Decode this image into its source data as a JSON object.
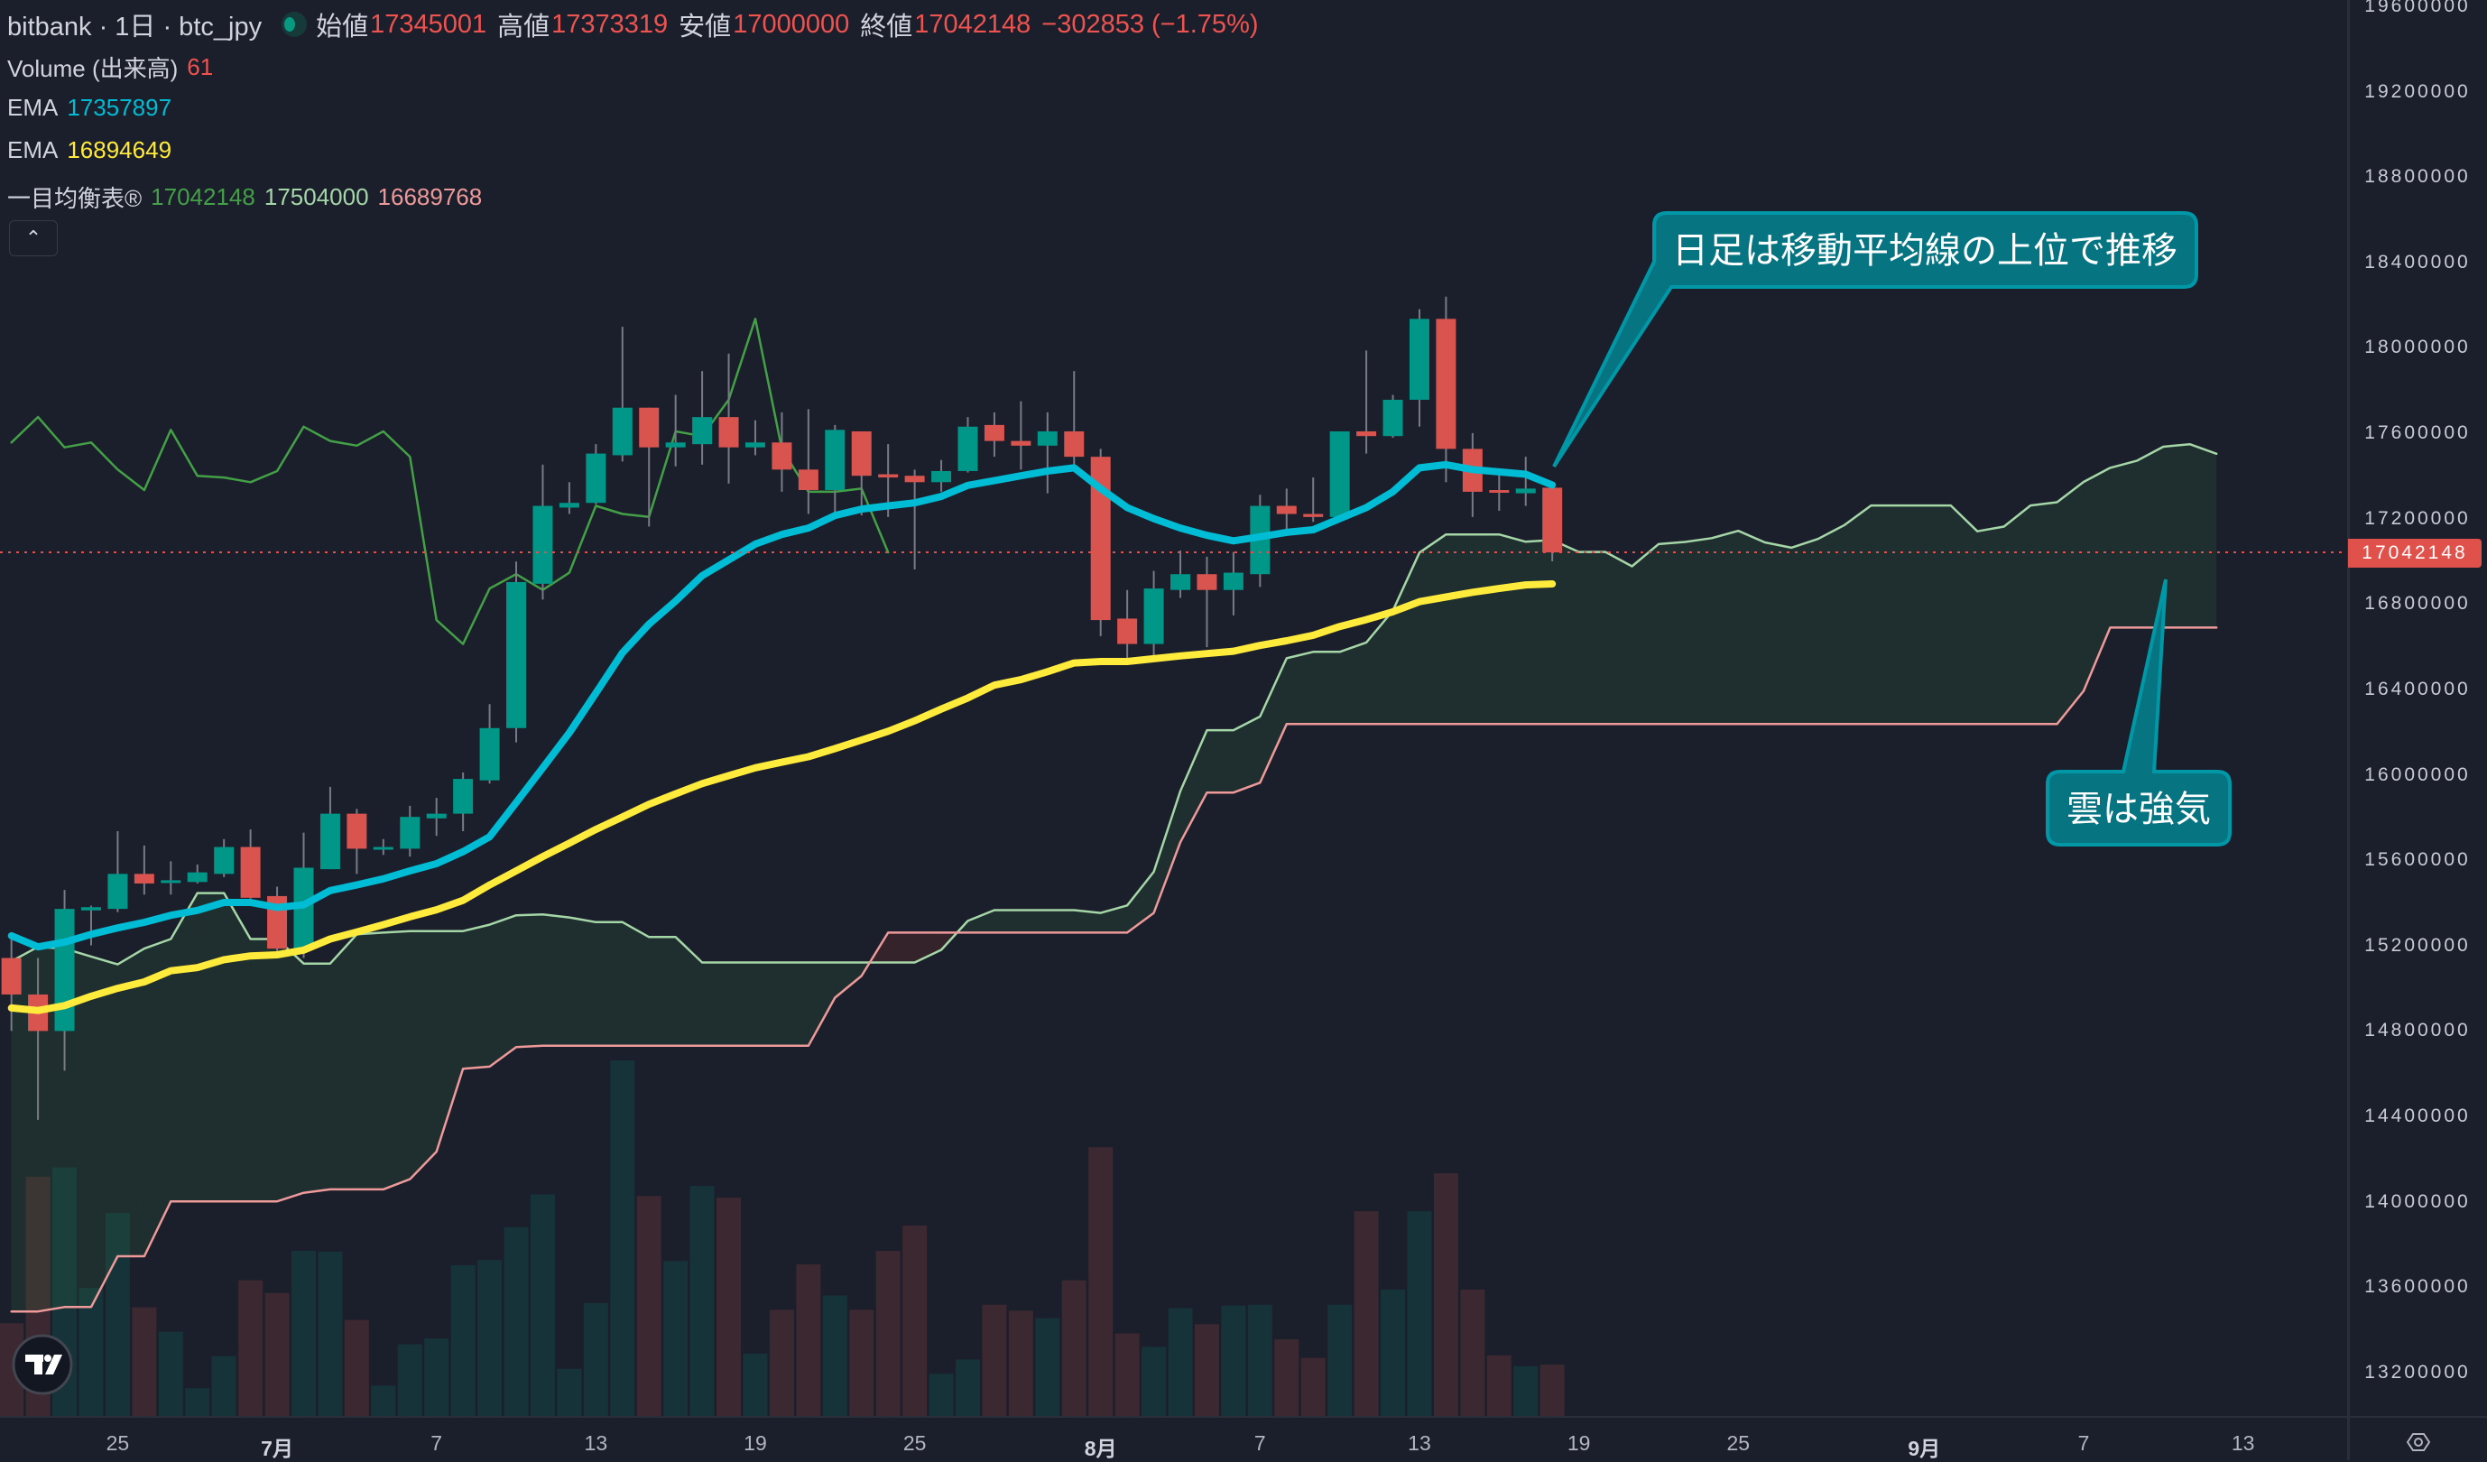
{
  "header": {
    "title": "bitbank · 1日 · btc_jpy",
    "ohlc": [
      {
        "label": "始値",
        "value": "17345001"
      },
      {
        "label": "高値",
        "value": "17373319"
      },
      {
        "label": "安値",
        "value": "17000000"
      },
      {
        "label": "終値",
        "value": "17042148"
      }
    ],
    "change": "−302853 (−1.75%)"
  },
  "indicators": {
    "volume": {
      "label": "Volume (出来高)",
      "value": "61"
    },
    "ema_fast": {
      "label": "EMA",
      "value": "17357897",
      "color": "#00bcd4"
    },
    "ema_slow": {
      "label": "EMA",
      "value": "16894649",
      "color": "#ffeb3b"
    },
    "ichimoku": {
      "label": "一目均衡表®",
      "values": [
        "17042148",
        "17504000",
        "16689768"
      ],
      "colors": [
        "#43a047",
        "#a5d6a7",
        "#ef9a9a"
      ]
    },
    "collapse_icon": "chevron-up-icon"
  },
  "annotations": {
    "callout_ma": "日足は移動平均線の上位で推移",
    "callout_cloud": "雲は強気"
  },
  "price_axis": {
    "labels": [
      "19600000",
      "19200000",
      "18800000",
      "18400000",
      "18000000",
      "17600000",
      "17200000",
      "16800000",
      "16400000",
      "16000000",
      "15600000",
      "15200000",
      "14800000",
      "14400000",
      "14000000",
      "13600000",
      "13200000"
    ],
    "current_price": "17042148"
  },
  "time_axis": [
    {
      "label": "25",
      "day_offset": 4,
      "month": false
    },
    {
      "label": "7月",
      "day_offset": 10,
      "month": true
    },
    {
      "label": "7",
      "day_offset": 16,
      "month": false
    },
    {
      "label": "13",
      "day_offset": 22,
      "month": false
    },
    {
      "label": "19",
      "day_offset": 28,
      "month": false
    },
    {
      "label": "25",
      "day_offset": 34,
      "month": false
    },
    {
      "label": "8月",
      "day_offset": 41,
      "month": true
    },
    {
      "label": "7",
      "day_offset": 47,
      "month": false
    },
    {
      "label": "13",
      "day_offset": 53,
      "month": false
    },
    {
      "label": "19",
      "day_offset": 59,
      "month": false
    },
    {
      "label": "25",
      "day_offset": 65,
      "month": false
    },
    {
      "label": "9月",
      "day_offset": 72,
      "month": true
    },
    {
      "label": "7",
      "day_offset": 78,
      "month": false
    },
    {
      "label": "13",
      "day_offset": 84,
      "month": false
    }
  ],
  "colors": {
    "up": "#009688",
    "down": "#d9534f",
    "wick": "#787b86",
    "vol_up": "#16333a",
    "vol_down": "#3b2831",
    "background": "#1b1f2b"
  },
  "chart_data": {
    "type": "candlestick",
    "symbol": "btc_jpy",
    "interval": "1日",
    "ylim": [
      13000000,
      19700000
    ],
    "candle_fields": [
      "date",
      "open",
      "high",
      "low",
      "close"
    ],
    "candles": [
      [
        "6/21",
        15142000,
        15246000,
        14800000,
        14971000
      ],
      [
        "6/22",
        14971000,
        15142000,
        14384000,
        14800000
      ],
      [
        "6/23",
        14800000,
        15461000,
        14614000,
        15372000
      ],
      [
        "6/24",
        15365000,
        15387000,
        15201000,
        15380000
      ],
      [
        "6/25",
        15372000,
        15736000,
        15357000,
        15536000
      ],
      [
        "6/26",
        15536000,
        15669000,
        15439000,
        15491000
      ],
      [
        "6/27",
        15500000,
        15595000,
        15439000,
        15506000
      ],
      [
        "6/28",
        15498000,
        15580000,
        15491000,
        15543000
      ],
      [
        "6/29",
        15536000,
        15699000,
        15521000,
        15662000
      ],
      [
        "6/30",
        15662000,
        15744000,
        15420000,
        15424000
      ],
      [
        "7/1",
        15432000,
        15476000,
        15157000,
        15186000
      ],
      [
        "7/2",
        15186000,
        15729000,
        15142000,
        15565000
      ],
      [
        "7/3",
        15558000,
        15944000,
        15558000,
        15818000
      ],
      [
        "7/4",
        15818000,
        15840000,
        15536000,
        15654000
      ],
      [
        "7/5",
        15654000,
        15699000,
        15625000,
        15662000
      ],
      [
        "7/6",
        15654000,
        15855000,
        15617000,
        15803000
      ],
      [
        "7/7",
        15796000,
        15892000,
        15714000,
        15818000
      ],
      [
        "7/8",
        15818000,
        16011000,
        15736000,
        15981000
      ],
      [
        "7/9",
        15974000,
        16331000,
        15959000,
        16219000
      ],
      [
        "7/10",
        16219000,
        16999000,
        16152000,
        16903000
      ],
      [
        "7/11",
        16895000,
        17453000,
        16821000,
        17260000
      ],
      [
        "7/12",
        17252000,
        17371000,
        17222000,
        17274000
      ],
      [
        "7/13",
        17274000,
        17549000,
        17267000,
        17505000
      ],
      [
        "7/14",
        17497000,
        18099000,
        17468000,
        17720000
      ],
      [
        "7/15",
        17720000,
        17720000,
        17163000,
        17534000
      ],
      [
        "7/16",
        17534000,
        17780000,
        17445000,
        17557000
      ],
      [
        "7/17",
        17549000,
        17891000,
        17453000,
        17676000
      ],
      [
        "7/18",
        17676000,
        17973000,
        17364000,
        17534000
      ],
      [
        "7/19",
        17534000,
        17661000,
        17497000,
        17557000
      ],
      [
        "7/20",
        17557000,
        17698000,
        17326000,
        17430000
      ],
      [
        "7/21",
        17430000,
        17713000,
        17222000,
        17334000
      ],
      [
        "7/22",
        17334000,
        17639000,
        17200000,
        17616000
      ],
      [
        "7/23",
        17609000,
        17609000,
        17215000,
        17401000
      ],
      [
        "7/24",
        17408000,
        17549000,
        17208000,
        17393000
      ],
      [
        "7/25",
        17401000,
        17430000,
        16962000,
        17371000
      ],
      [
        "7/26",
        17371000,
        17475000,
        17326000,
        17423000
      ],
      [
        "7/27",
        17423000,
        17676000,
        17416000,
        17631000
      ],
      [
        "7/28",
        17639000,
        17698000,
        17490000,
        17564000
      ],
      [
        "7/29",
        17564000,
        17750000,
        17430000,
        17542000
      ],
      [
        "7/30",
        17542000,
        17698000,
        17319000,
        17609000
      ],
      [
        "7/31",
        17609000,
        17891000,
        17445000,
        17490000
      ],
      [
        "8/1",
        17490000,
        17527000,
        16650000,
        16725000
      ],
      [
        "8/2",
        16732000,
        16866000,
        16531000,
        16613000
      ],
      [
        "8/3",
        16613000,
        16955000,
        16539000,
        16873000
      ],
      [
        "8/4",
        16866000,
        17051000,
        16829000,
        16940000
      ],
      [
        "8/5",
        16940000,
        17022000,
        16598000,
        16866000
      ],
      [
        "8/6",
        16866000,
        17044000,
        16747000,
        16947000
      ],
      [
        "8/7",
        16940000,
        17312000,
        16880000,
        17260000
      ],
      [
        "8/8",
        17260000,
        17341000,
        17141000,
        17222000
      ],
      [
        "8/9",
        17222000,
        17393000,
        17185000,
        17208000
      ],
      [
        "8/10",
        17208000,
        17609000,
        17200000,
        17609000
      ],
      [
        "8/11",
        17609000,
        17988000,
        17505000,
        17587000
      ],
      [
        "8/12",
        17587000,
        17780000,
        17579000,
        17757000
      ],
      [
        "8/13",
        17757000,
        18181000,
        17631000,
        18136000
      ],
      [
        "8/14",
        18136000,
        18240000,
        17371000,
        17527000
      ],
      [
        "8/15",
        17527000,
        17601000,
        17208000,
        17326000
      ],
      [
        "8/16",
        17334000,
        17416000,
        17237000,
        17326000
      ],
      [
        "8/17",
        17319000,
        17490000,
        17260000,
        17341000
      ],
      [
        "8/18",
        17345001,
        17373319,
        17000000,
        17042148
      ]
    ],
    "volume": [
      110,
      284,
      295,
      152,
      241,
      129,
      100,
      33,
      71,
      161,
      146,
      196,
      195,
      114,
      36,
      85,
      92,
      179,
      185,
      224,
      263,
      56,
      134,
      422,
      261,
      184,
      273,
      259,
      74,
      126,
      180,
      143,
      126,
      196,
      226,
      50,
      67,
      132,
      125,
      116,
      161,
      319,
      98,
      82,
      128,
      109,
      131,
      132,
      91,
      69,
      132,
      243,
      150,
      243,
      288,
      150,
      72,
      59,
      61
    ],
    "ema_fast": [
      15246000,
      15194000,
      15216000,
      15253000,
      15283000,
      15309000,
      15342000,
      15365000,
      15402000,
      15402000,
      15379000,
      15391000,
      15458000,
      15484000,
      15513000,
      15550000,
      15584000,
      15640000,
      15710000,
      15870000,
      16033000,
      16197000,
      16383000,
      16572000,
      16706000,
      16814000,
      16933000,
      17007000,
      17081000,
      17126000,
      17156000,
      17215000,
      17245000,
      17260000,
      17274000,
      17304000,
      17356000,
      17378000,
      17401000,
      17423000,
      17438000,
      17341000,
      17252000,
      17200000,
      17156000,
      17122000,
      17096000,
      17115000,
      17136000,
      17148000,
      17200000,
      17252000,
      17326000,
      17438000,
      17453000,
      17430000,
      17419000,
      17408000,
      17357897
    ],
    "ema_slow": [
      14908000,
      14896000,
      14919000,
      14963000,
      15000000,
      15030000,
      15082000,
      15097000,
      15134000,
      15152000,
      15157000,
      15179000,
      15231000,
      15264000,
      15298000,
      15335000,
      15368000,
      15412000,
      15484000,
      15550000,
      15617000,
      15680000,
      15744000,
      15803000,
      15862000,
      15911000,
      15959000,
      15996000,
      16033000,
      16059000,
      16085000,
      16123000,
      16163000,
      16204000,
      16253000,
      16308000,
      16360000,
      16420000,
      16446000,
      16483000,
      16524000,
      16531000,
      16531000,
      16544000,
      16557000,
      16568000,
      16579000,
      16606000,
      16628000,
      16654000,
      16695000,
      16727000,
      16764000,
      16811000,
      16833000,
      16855000,
      16873000,
      16890000,
      16894649
    ],
    "lagging_span_shift_days": 25,
    "leading_span_a": [
      15127000,
      15194000,
      15186000,
      15149000,
      15112000,
      15186000,
      15231000,
      15446000,
      15446000,
      15231000,
      15231000,
      15116000,
      15116000,
      15253000,
      15261000,
      15268000,
      15268000,
      15268000,
      15298000,
      15342000,
      15346000,
      15332000,
      15310000,
      15310000,
      15240000,
      15240000,
      15121000,
      15121000,
      15121000,
      15121000,
      15121000,
      15121000,
      15121000,
      15121000,
      15121000,
      15180000,
      15316000,
      15366000,
      15366000,
      15366000,
      15366000,
      15353000,
      15388000,
      15546000,
      15924000,
      16209000,
      16209000,
      16273000,
      16546000,
      16576000,
      16576000,
      16620000,
      16769000,
      17041000,
      17126000,
      17126000,
      17126000,
      17092000,
      17100000,
      17044000,
      17044000,
      16977000,
      17081000,
      17091000,
      17109000,
      17143000,
      17089000,
      17064000,
      17105000,
      17170000,
      17262000,
      17262000,
      17262000,
      17262000,
      17141000,
      17163000,
      17262000,
      17277000,
      17372000,
      17438000,
      17471000,
      17537000,
      17549000,
      17504000
    ],
    "leading_span_b": [
      13486000,
      13486000,
      13507000,
      13507000,
      13745000,
      13745000,
      14002000,
      14002000,
      14002000,
      14002000,
      14002000,
      14042000,
      14058000,
      14058000,
      14058000,
      14106000,
      14235000,
      14623000,
      14633000,
      14725000,
      14731000,
      14731000,
      14731000,
      14731000,
      14731000,
      14731000,
      14731000,
      14731000,
      14731000,
      14731000,
      14731000,
      14956000,
      15058000,
      15261000,
      15261000,
      15261000,
      15261000,
      15261000,
      15261000,
      15261000,
      15261000,
      15261000,
      15261000,
      15353000,
      15684000,
      15917000,
      15917000,
      15963000,
      16238000,
      16238000,
      16238000,
      16238000,
      16238000,
      16238000,
      16238000,
      16238000,
      16238000,
      16238000,
      16238000,
      16238000,
      16238000,
      16238000,
      16238000,
      16238000,
      16238000,
      16238000,
      16238000,
      16238000,
      16238000,
      16238000,
      16238000,
      16238000,
      16238000,
      16238000,
      16238000,
      16238000,
      16238000,
      16238000,
      16393000,
      16690000,
      16690000,
      16690000,
      16690000,
      16689768
    ]
  }
}
